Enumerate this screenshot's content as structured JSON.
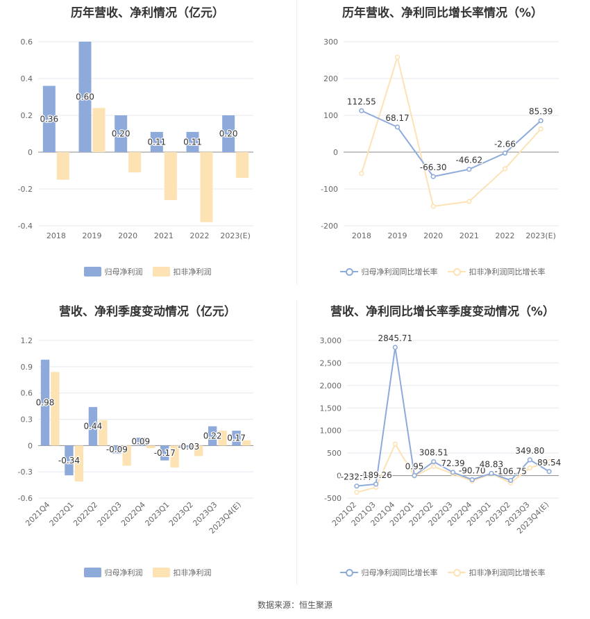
{
  "colors": {
    "net": "#8eaadb",
    "deducted": "#fde2b4",
    "grid": "#e8e8f0",
    "axis": "#999999",
    "text": "#333333"
  },
  "panels": [
    {
      "id": "p1",
      "title": "历年营收、净利情况（亿元）",
      "legend": [
        "归母净利润",
        "扣非净利润"
      ],
      "chart_data": {
        "type": "bar",
        "categories": [
          "2018",
          "2019",
          "2020",
          "2021",
          "2022",
          "2023(E)"
        ],
        "series": [
          {
            "name": "归母净利润",
            "values": [
              0.36,
              0.6,
              0.2,
              0.11,
              0.11,
              0.2
            ],
            "labels": [
              "0.36",
              "0.60",
              "0.20",
              "0.11",
              "0.11",
              "0.20"
            ]
          },
          {
            "name": "扣非净利润",
            "values": [
              -0.15,
              0.24,
              -0.11,
              -0.26,
              -0.38,
              -0.14
            ]
          }
        ],
        "yticks": [
          -0.4,
          -0.2,
          0,
          0.2,
          0.4,
          0.6
        ],
        "ytick_labels": [
          "-0.4",
          "-0.2",
          "0",
          "0.2",
          "0.4",
          "0.6"
        ],
        "ylim": [
          -0.4,
          0.6
        ],
        "grid": true,
        "legend_position": "bottom"
      }
    },
    {
      "id": "p2",
      "title": "历年营收、净利同比增长率情况（%）",
      "legend": [
        "归母净利润同比增长率",
        "扣非净利润同比增长率"
      ],
      "chart_data": {
        "type": "line",
        "categories": [
          "2018",
          "2019",
          "2020",
          "2021",
          "2022",
          "2023(E)"
        ],
        "series": [
          {
            "name": "归母净利润同比增长率",
            "values": [
              112.55,
              68.17,
              -66.3,
              -46.62,
              -2.66,
              85.39
            ],
            "labels": [
              "112.55",
              "68.17",
              "-66.30",
              "-46.62",
              "-2.66",
              "85.39"
            ]
          },
          {
            "name": "扣非净利润同比增长率",
            "values": [
              -58,
              258,
              -147,
              -134,
              -45,
              63
            ]
          }
        ],
        "yticks": [
          -200,
          -100,
          0,
          100,
          200,
          300
        ],
        "ytick_labels": [
          "-200",
          "-100",
          "0",
          "100",
          "200",
          "300"
        ],
        "ylim": [
          -200,
          300
        ],
        "grid": true,
        "legend_position": "bottom"
      }
    },
    {
      "id": "p3",
      "title": "营收、净利季度变动情况（亿元）",
      "legend": [
        "归母净利润",
        "扣非净利润"
      ],
      "chart_data": {
        "type": "bar",
        "categories": [
          "2021Q4",
          "2022Q1",
          "2022Q2",
          "2022Q3",
          "2022Q4",
          "2023Q1",
          "2023Q2",
          "2023Q3",
          "2023Q4(E)"
        ],
        "series": [
          {
            "name": "归母净利润",
            "values": [
              0.98,
              -0.34,
              0.44,
              -0.09,
              0.09,
              -0.17,
              -0.03,
              0.22,
              0.17
            ],
            "labels": [
              "0.98",
              "-0.34",
              "0.44",
              "-0.09",
              "0.09",
              "-0.17",
              "-0.03",
              "0.22",
              "0.17"
            ]
          },
          {
            "name": "扣非净利润",
            "values": [
              0.84,
              -0.41,
              0.29,
              -0.23,
              -0.03,
              -0.25,
              -0.12,
              0.17,
              0.06
            ]
          }
        ],
        "yticks": [
          -0.6,
          -0.3,
          0,
          0.3,
          0.6,
          0.9,
          1.2
        ],
        "ytick_labels": [
          "-0.6",
          "-0.3",
          "0",
          "0.3",
          "0.6",
          "0.9",
          "1.2"
        ],
        "ylim": [
          -0.6,
          1.2
        ],
        "grid": true,
        "legend_position": "bottom"
      }
    },
    {
      "id": "p4",
      "title": "营收、净利同比增长率季度变动情况（%）",
      "legend": [
        "归母净利润同比增长率",
        "扣非净利润同比增长率"
      ],
      "chart_data": {
        "type": "line",
        "categories": [
          "2021Q2",
          "2021Q3",
          "2021Q4",
          "2022Q1",
          "2022Q2",
          "2022Q3",
          "2022Q4",
          "2023Q1",
          "2023Q2",
          "2023Q3",
          "2023Q4(E)"
        ],
        "series": [
          {
            "name": "归母净利润同比增长率",
            "values": [
              -232.77,
              -189.26,
              2845.71,
              0.95,
              308.51,
              72.39,
              -90.7,
              48.83,
              -106.75,
              349.8,
              89.54
            ],
            "labels": [
              "-232.77",
              "-189.26",
              "2845.71",
              "0.95",
              "308.51",
              "72.39",
              "-90.70",
              "48.83",
              "-106.75",
              "349.80",
              "89.54"
            ]
          },
          {
            "name": "扣非净利润同比增长率",
            "values": [
              -370,
              -260,
              700,
              -10,
              200,
              40,
              -120,
              40,
              -160,
              170,
              310
            ]
          }
        ],
        "yticks": [
          -500,
          0,
          500,
          1000,
          1500,
          2000,
          2500,
          3000
        ],
        "ytick_labels": [
          "-500",
          "0",
          "500",
          "1,000",
          "1,500",
          "2,000",
          "2,500",
          "3,000"
        ],
        "ylim": [
          -500,
          3000
        ],
        "grid": true,
        "legend_position": "bottom"
      }
    }
  ],
  "source": "数据来源：恒生聚源"
}
